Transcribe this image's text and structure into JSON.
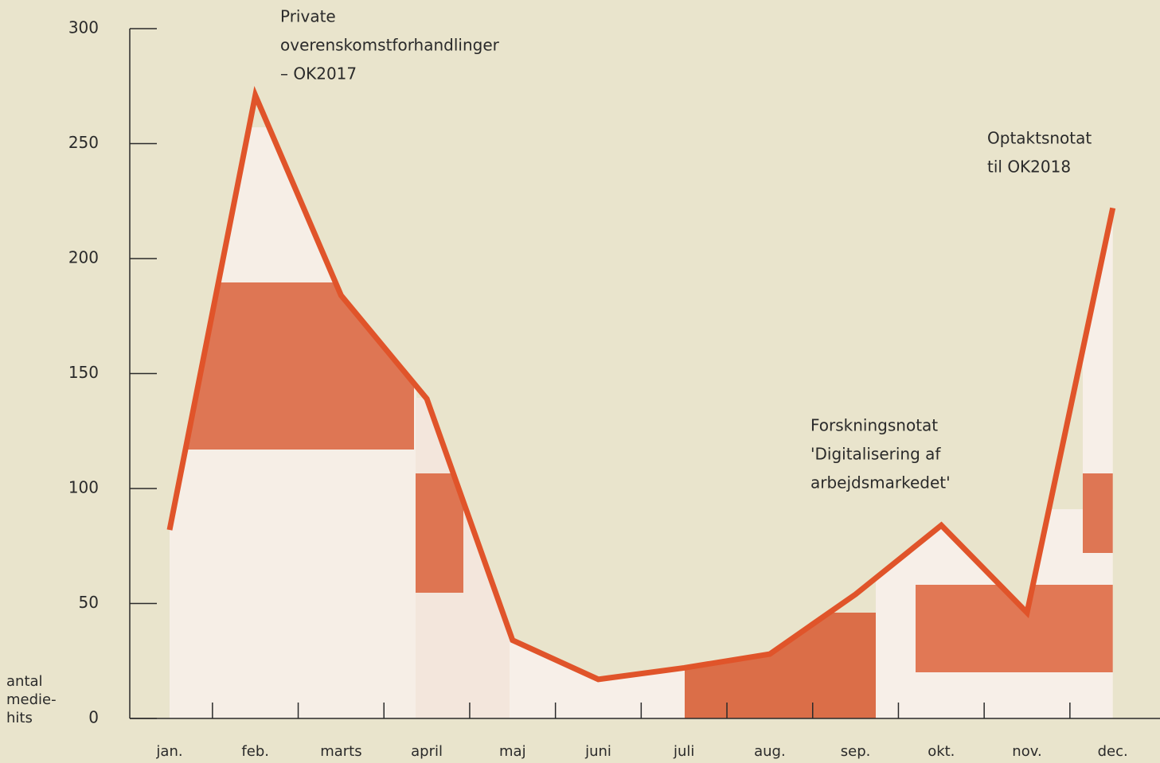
{
  "chart_data": {
    "type": "line",
    "categories": [
      "jan.",
      "feb.",
      "marts",
      "april",
      "maj",
      "juni",
      "juli",
      "aug.",
      "sep.",
      "okt.",
      "nov.",
      "dec."
    ],
    "values": [
      82,
      271,
      184,
      139,
      34,
      17,
      22,
      28,
      54,
      84,
      46,
      222
    ],
    "color": "#e0542a",
    "ylim": [
      0,
      300
    ],
    "yticks": [
      0,
      50,
      100,
      150,
      200,
      250,
      300
    ],
    "ylabel": [
      "antal",
      "medie-",
      "hits"
    ],
    "annotations": [
      [
        "Private",
        "overenskomstforhandlinger",
        "– OK2017"
      ],
      [
        "Forskningsnotat",
        "'Digitalisering af",
        "arbejdsmarkedet'"
      ],
      [
        "Optaktsnotat",
        "til OK2018"
      ]
    ]
  }
}
